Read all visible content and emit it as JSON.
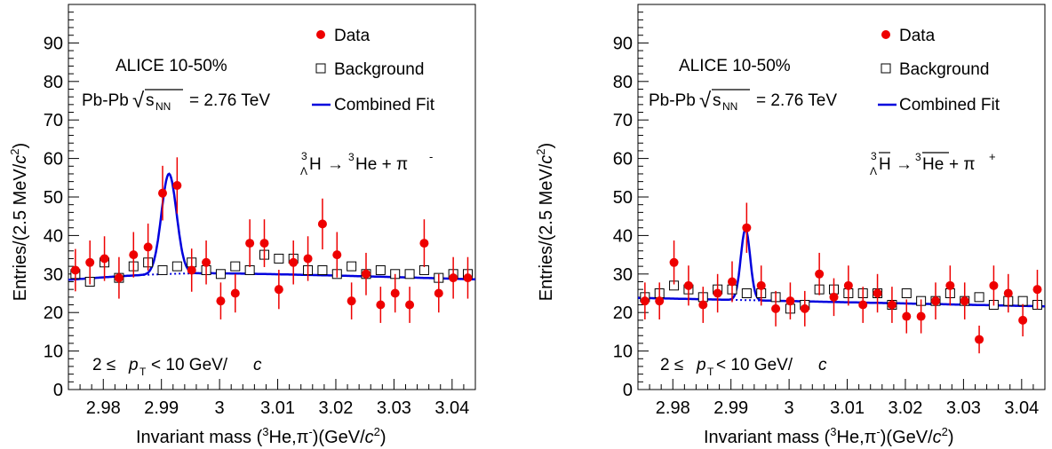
{
  "colors": {
    "data": "#ee0000",
    "fit": "#0000dd",
    "axis": "#000000",
    "background_marker": "#000000"
  },
  "legend": {
    "data": "Data",
    "background": "Background",
    "fit": "Combined Fit"
  },
  "chart_data": [
    {
      "type": "scatter",
      "experiment": "ALICE 10-50%",
      "collision_prefix": "Pb-Pb",
      "energy_symbol": "s",
      "energy_subscript": "NN",
      "energy_value": "= 2.76 TeV",
      "decay": {
        "lhs_super": "3",
        "lhs_sub": "Λ",
        "lhs": "H",
        "arrow": "→",
        "rhs_super": "3",
        "rhs": "He + π",
        "pion_charge": "-",
        "anti": false
      },
      "pt_cut": {
        "prefix": "2 ≤",
        "p": "p",
        "sub": "T",
        "suffix": "< 10 GeV/",
        "c": "c"
      },
      "xlabel": {
        "prefix": "Invariant mass (",
        "super": "3",
        "mid": "He,π",
        "charge": "-",
        "suffix": ")(GeV/",
        "c": "c",
        "power": "2",
        "close": ")"
      },
      "ylabel": {
        "prefix": "Entries/(2.5 MeV/",
        "c": "c",
        "power": "2",
        "close": ")"
      },
      "xlim": [
        2.974,
        3.044
      ],
      "ylim": [
        0,
        100
      ],
      "xticks": [
        2.98,
        2.99,
        3.0,
        3.01,
        3.02,
        3.03,
        3.04
      ],
      "xtick_labels": [
        "2.98",
        "2.99",
        "3",
        "3.01",
        "3.02",
        "3.03",
        "3.04"
      ],
      "yticks": [
        0,
        10,
        20,
        30,
        40,
        50,
        60,
        70,
        80,
        90
      ],
      "ytick_labels": [
        "0",
        "10",
        "20",
        "30",
        "40",
        "50",
        "60",
        "70",
        "80",
        "90"
      ],
      "series": [
        {
          "name": "Data",
          "x": [
            2.9752,
            2.9777,
            2.9802,
            2.9827,
            2.9852,
            2.9877,
            2.9902,
            2.9927,
            2.9952,
            2.9977,
            3.0002,
            3.0027,
            3.0052,
            3.0077,
            3.0102,
            3.0127,
            3.0152,
            3.0177,
            3.0202,
            3.0227,
            3.0252,
            3.0277,
            3.0302,
            3.0327,
            3.0352,
            3.0377,
            3.0402,
            3.0427
          ],
          "y": [
            31,
            33,
            34,
            29,
            35,
            37,
            51,
            53,
            31,
            33,
            23,
            25,
            38,
            38,
            26,
            33,
            34,
            43,
            35,
            23,
            30,
            22,
            25,
            22,
            38,
            25,
            29,
            29
          ],
          "yerr": [
            5.5,
            5.7,
            5.8,
            5.4,
            5.9,
            6.1,
            7.1,
            7.3,
            5.6,
            5.7,
            4.8,
            5.0,
            6.2,
            6.2,
            5.1,
            5.7,
            5.8,
            6.6,
            5.9,
            4.8,
            5.5,
            4.7,
            5.0,
            4.7,
            6.2,
            5.0,
            5.4,
            5.4
          ]
        },
        {
          "name": "Background",
          "x": [
            2.9752,
            2.9777,
            2.9802,
            2.9827,
            2.9852,
            2.9877,
            2.9902,
            2.9927,
            2.9952,
            2.9977,
            3.0002,
            3.0027,
            3.0052,
            3.0077,
            3.0102,
            3.0127,
            3.0152,
            3.0177,
            3.0202,
            3.0227,
            3.0252,
            3.0277,
            3.0302,
            3.0327,
            3.0352,
            3.0377,
            3.0402,
            3.0427
          ],
          "y": [
            30,
            28,
            33,
            29,
            32,
            33,
            31,
            32,
            33,
            31,
            30,
            32,
            31,
            35,
            34,
            34,
            31,
            31,
            30,
            32,
            30,
            31,
            30,
            30,
            31,
            29,
            30,
            30
          ]
        },
        {
          "name": "Combined Fit",
          "curve": {
            "bg_start": 28.5,
            "bg_peak_region": 30.2,
            "bg_end": 28.6,
            "peak_mean": 2.9913,
            "peak_sigma": 0.0013,
            "peak_height": 26
          }
        }
      ]
    },
    {
      "type": "scatter",
      "experiment": "ALICE 10-50%",
      "collision_prefix": "Pb-Pb",
      "energy_symbol": "s",
      "energy_subscript": "NN",
      "energy_value": "= 2.76 TeV",
      "decay": {
        "lhs_super": "3",
        "lhs_sub": "Λ",
        "lhs": "H",
        "arrow": "→",
        "rhs_super": "3",
        "rhs": "He",
        "rhs_tail": " + π",
        "pion_charge": "+",
        "anti": true
      },
      "pt_cut": {
        "prefix": "2 ≤",
        "p": "p",
        "sub": "T",
        "suffix": "< 10 GeV/",
        "c": "c"
      },
      "xlabel": {
        "prefix": "Invariant mass (",
        "super": "3",
        "mid": "He,π",
        "charge": "-",
        "suffix": ")(GeV/",
        "c": "c",
        "power": "2",
        "close": ")"
      },
      "ylabel": {
        "prefix": "Entries/(2.5 MeV/",
        "c": "c",
        "power": "2",
        "close": ")"
      },
      "xlim": [
        2.974,
        3.044
      ],
      "ylim": [
        0,
        100
      ],
      "xticks": [
        2.98,
        2.99,
        3.0,
        3.01,
        3.02,
        3.03,
        3.04
      ],
      "xtick_labels": [
        "2.98",
        "2.99",
        "3",
        "3.01",
        "3.02",
        "3.03",
        "3.04"
      ],
      "yticks": [
        0,
        10,
        20,
        30,
        40,
        50,
        60,
        70,
        80,
        90
      ],
      "ytick_labels": [
        "0",
        "10",
        "20",
        "30",
        "40",
        "50",
        "60",
        "70",
        "80",
        "90"
      ],
      "series": [
        {
          "name": "Data",
          "x": [
            2.9752,
            2.9777,
            2.9802,
            2.9827,
            2.9852,
            2.9877,
            2.9902,
            2.9927,
            2.9952,
            2.9977,
            3.0002,
            3.0027,
            3.0052,
            3.0077,
            3.0102,
            3.0127,
            3.0152,
            3.0177,
            3.0202,
            3.0227,
            3.0252,
            3.0277,
            3.0302,
            3.0327,
            3.0352,
            3.0377,
            3.0402,
            3.0427
          ],
          "y": [
            23,
            23,
            33,
            27,
            22,
            25,
            28,
            42,
            27,
            21,
            23,
            21,
            30,
            24,
            27,
            22,
            25,
            22,
            19,
            19,
            23,
            27,
            23,
            13,
            27,
            25,
            18,
            26
          ],
          "yerr": [
            4.8,
            4.8,
            5.7,
            5.2,
            4.7,
            5.0,
            5.3,
            6.5,
            5.2,
            4.6,
            4.8,
            4.6,
            5.5,
            4.9,
            5.2,
            4.7,
            5.0,
            4.7,
            4.4,
            4.4,
            4.8,
            5.2,
            4.8,
            3.6,
            5.2,
            5.0,
            4.2,
            5.1
          ]
        },
        {
          "name": "Background",
          "x": [
            2.9752,
            2.9777,
            2.9802,
            2.9827,
            2.9852,
            2.9877,
            2.9902,
            2.9927,
            2.9952,
            2.9977,
            3.0002,
            3.0027,
            3.0052,
            3.0077,
            3.0102,
            3.0127,
            3.0152,
            3.0177,
            3.0202,
            3.0227,
            3.0252,
            3.0277,
            3.0302,
            3.0327,
            3.0352,
            3.0377,
            3.0402,
            3.0427
          ],
          "y": [
            24,
            25,
            27,
            26,
            24,
            26,
            26,
            25,
            25,
            24,
            21,
            22,
            26,
            26,
            25,
            25,
            25,
            22,
            25,
            23,
            23,
            25,
            23,
            24,
            22,
            23,
            23,
            22
          ]
        },
        {
          "name": "Combined Fit",
          "curve": {
            "bg_start": 23.8,
            "bg_end": 21.6,
            "peak_mean": 2.9925,
            "peak_sigma": 0.0008,
            "peak_height": 18.5
          }
        }
      ]
    }
  ]
}
